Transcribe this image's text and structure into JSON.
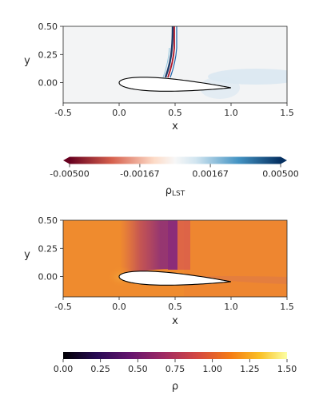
{
  "colors": {
    "axis": "#262626",
    "airfoil_fill": "#ffffff",
    "airfoil_edge": "#000000"
  },
  "chart_data": [
    {
      "type": "heatmap",
      "title": "",
      "xlabel": "x",
      "ylabel": "y",
      "xlim": [
        -0.5,
        1.5
      ],
      "ylim": [
        -0.18,
        0.5
      ],
      "xticks": [
        "-0.5",
        "0.0",
        "0.5",
        "1.0",
        "1.5"
      ],
      "xtick_values": [
        -0.5,
        0.0,
        0.5,
        1.0,
        1.5
      ],
      "yticks": [
        "0.50",
        "0.25",
        "0.00"
      ],
      "ytick_values": [
        0.5,
        0.25,
        0.0
      ],
      "colormap": "RdBu (diverging, red negative, blue positive)",
      "colorbar": {
        "label_main": "ρ",
        "label_sub": "LST",
        "ticks": [
          "-0.00500",
          "-0.00167",
          "0.00167",
          "0.00500"
        ],
        "tick_values": [
          -0.005,
          -0.00167,
          0.00167,
          0.005
        ],
        "range": [
          -0.005,
          0.005
        ],
        "extend": "both"
      },
      "features": "Near-zero field everywhere; strong narrow disturbance along shock line from about x=0.42,y=0.07 up to x=0.48,y=0.5; faint blue wake downstream of trailing edge"
    },
    {
      "type": "heatmap",
      "title": "",
      "xlabel": "x",
      "ylabel": "y",
      "xlim": [
        -0.5,
        1.5
      ],
      "ylim": [
        -0.18,
        0.5
      ],
      "xticks": [
        "-0.5",
        "0.0",
        "0.5",
        "1.0",
        "1.5"
      ],
      "xtick_values": [
        -0.5,
        0.0,
        0.5,
        1.0,
        1.5
      ],
      "yticks": [
        "0.50",
        "0.25",
        "0.00"
      ],
      "ytick_values": [
        0.5,
        0.25,
        0.0
      ],
      "colormap": "inferno",
      "colorbar": {
        "label_main": "ρ",
        "ticks": [
          "0.00",
          "0.25",
          "0.50",
          "0.75",
          "1.00",
          "1.25",
          "1.50"
        ],
        "tick_values": [
          0,
          0.25,
          0.5,
          0.75,
          1.0,
          1.25,
          1.5
        ],
        "range": [
          0,
          1.5
        ]
      },
      "features": "Density ~1.0 in freestream; low-density (~0.7) supersonic pocket above the airfoil between x=0.15 and x=0.5, terminated by a shock near x=0.5; ~1.2 stagnation near leading edge"
    }
  ]
}
